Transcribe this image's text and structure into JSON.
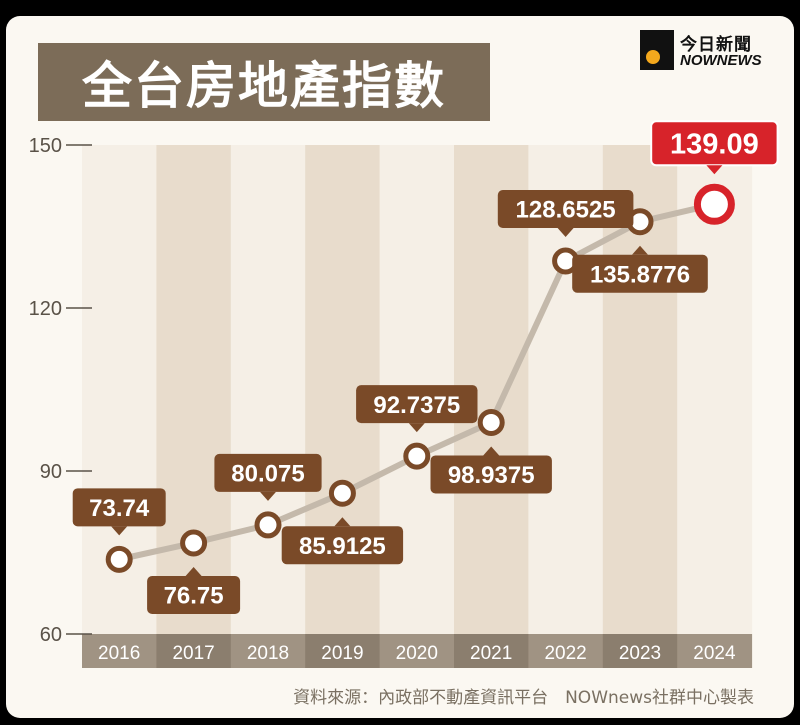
{
  "header": {
    "title": "全台房地產指數",
    "brand_cn": "今日新聞",
    "brand_en": "NOWNEWS",
    "brand_logo_icon": "nownews-logo-icon"
  },
  "footer": {
    "source": "資料來源：內政部不動產資訊平台　NOWnews社群中心製表"
  },
  "colors": {
    "stripe_light": "#f5efe6",
    "stripe_dark": "#e8dccc",
    "xband_light": "#a09383",
    "xband_dark": "#8b7e6e",
    "line": "#c4b9ab",
    "label_bg": "#7a4a28",
    "highlight": "#d7232a",
    "axis_text": "#5a5248"
  },
  "chart_data": {
    "type": "line",
    "title": "全台房地產指數",
    "xlabel": "",
    "ylabel": "",
    "ylim": [
      60,
      150
    ],
    "yticks": [
      60,
      90,
      120,
      150
    ],
    "ytick_labels": [
      "60",
      "90",
      "120",
      "150"
    ],
    "categories": [
      "2016",
      "2017",
      "2018",
      "2019",
      "2020",
      "2021",
      "2022",
      "2023",
      "2024"
    ],
    "values": [
      73.74,
      76.75,
      80.075,
      85.9125,
      92.7375,
      98.9375,
      128.6525,
      135.8776,
      139.09
    ],
    "labels": [
      "73.74",
      "76.75",
      "80.075",
      "85.9125",
      "92.7375",
      "98.9375",
      "128.6525",
      "135.8776",
      "139.09"
    ],
    "label_positions": [
      "above",
      "below",
      "above",
      "below",
      "above",
      "below",
      "above",
      "below",
      "above"
    ],
    "highlight_index": 8,
    "grid": false
  }
}
